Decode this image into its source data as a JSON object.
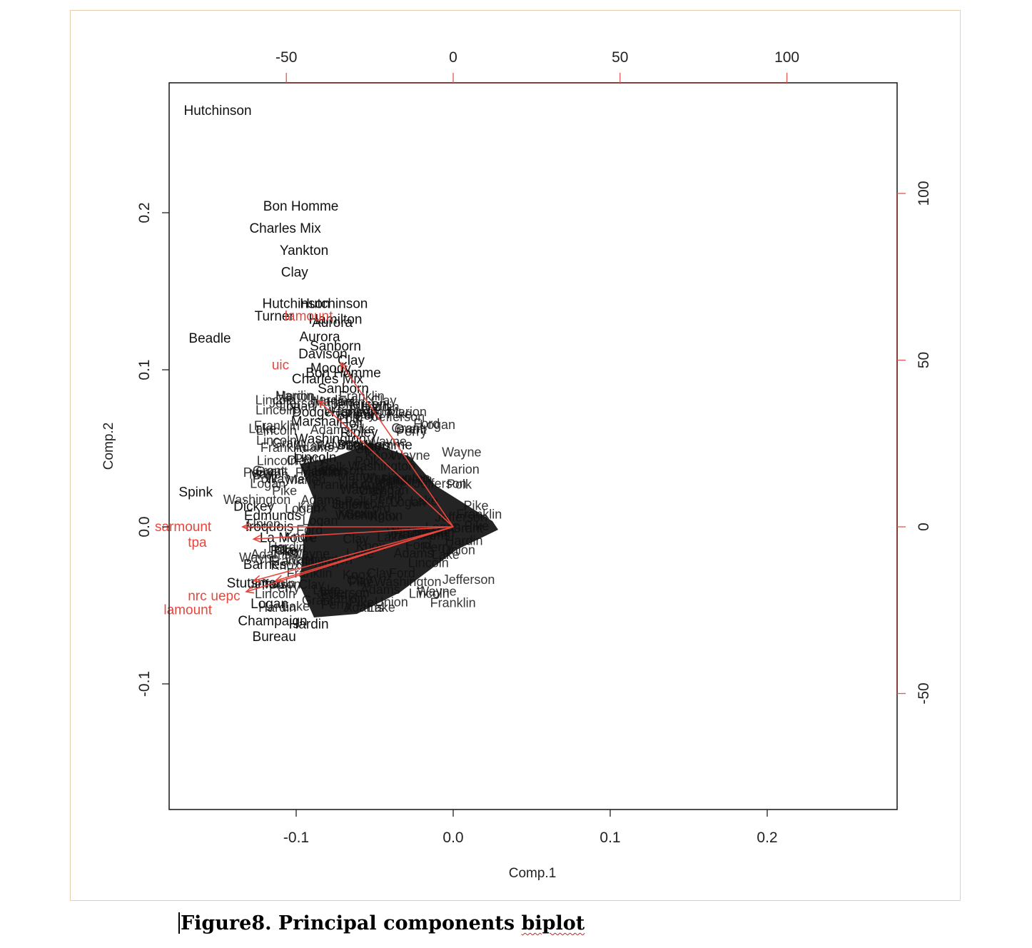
{
  "caption": {
    "prefix": "Figure8. Principal components ",
    "misspelled": "biplot"
  },
  "chart_data": {
    "type": "scatter",
    "subtype": "pca-biplot",
    "xlabel": "Comp.1",
    "ylabel": "Comp.2",
    "xlim": [
      -0.18,
      0.28
    ],
    "ylim": [
      -0.18,
      0.28
    ],
    "x_ticks": [
      -0.1,
      0.0,
      0.1,
      0.2
    ],
    "x_tick_labels": [
      "-0.1",
      "0.0",
      "0.1",
      "0.2"
    ],
    "y_ticks": [
      -0.1,
      0.0,
      0.1,
      0.2
    ],
    "y_tick_labels": [
      "-0.1",
      "0.0",
      "0.1",
      "0.2"
    ],
    "top_axis": {
      "ticks": [
        -50,
        0,
        50,
        100
      ],
      "labels": [
        "-50",
        "0",
        "50",
        "100"
      ],
      "lim": [
        -85,
        133
      ]
    },
    "right_axis": {
      "ticks": [
        -50,
        0,
        50,
        100
      ],
      "labels": [
        "-50",
        "0",
        "50",
        "100"
      ],
      "lim": [
        -85,
        133
      ]
    },
    "colors": {
      "points": "#111111",
      "loadings": "#e8463c",
      "axis": "#222222",
      "secondary_axis": "#e05a50",
      "secondary_axis_line": "#8b2d26"
    },
    "labeled_points": [
      {
        "label": "Hutchinson",
        "x": -0.15,
        "y": 0.265
      },
      {
        "label": "Bon Homme",
        "x": -0.097,
        "y": 0.204
      },
      {
        "label": "Charles Mix",
        "x": -0.107,
        "y": 0.19
      },
      {
        "label": "Yankton",
        "x": -0.095,
        "y": 0.176
      },
      {
        "label": "Clay",
        "x": -0.101,
        "y": 0.162
      },
      {
        "label": "Hutchinson",
        "x": -0.1,
        "y": 0.142
      },
      {
        "label": "Hutchinson",
        "x": -0.076,
        "y": 0.142
      },
      {
        "label": "Turner",
        "x": -0.114,
        "y": 0.134
      },
      {
        "label": "Hamilton",
        "x": -0.075,
        "y": 0.132
      },
      {
        "label": "Aurora",
        "x": -0.077,
        "y": 0.13
      },
      {
        "label": "Beadle",
        "x": -0.155,
        "y": 0.12
      },
      {
        "label": "Aurora",
        "x": -0.085,
        "y": 0.121
      },
      {
        "label": "Sanborn",
        "x": -0.075,
        "y": 0.115
      },
      {
        "label": "Davison",
        "x": -0.083,
        "y": 0.11
      },
      {
        "label": "Clay",
        "x": -0.065,
        "y": 0.106
      },
      {
        "label": "Moody",
        "x": -0.078,
        "y": 0.101
      },
      {
        "label": "Bon Homme",
        "x": -0.07,
        "y": 0.098
      },
      {
        "label": "Charles Mix",
        "x": -0.08,
        "y": 0.094
      },
      {
        "label": "Sanborn",
        "x": -0.07,
        "y": 0.088
      },
      {
        "label": "Jefferson",
        "x": -0.06,
        "y": 0.078
      },
      {
        "label": "Dodge",
        "x": -0.09,
        "y": 0.073
      },
      {
        "label": "Hanson",
        "x": -0.063,
        "y": 0.073
      },
      {
        "label": "Marshall",
        "x": -0.087,
        "y": 0.067
      },
      {
        "label": "Holt",
        "x": -0.065,
        "y": 0.066
      },
      {
        "label": "Ripley",
        "x": -0.06,
        "y": 0.06
      },
      {
        "label": "Washington",
        "x": -0.078,
        "y": 0.056
      },
      {
        "label": "Bon Homme",
        "x": -0.05,
        "y": 0.052
      },
      {
        "label": "Lincoln",
        "x": -0.088,
        "y": 0.044
      },
      {
        "label": "Spink",
        "x": -0.164,
        "y": 0.022
      },
      {
        "label": "Dickey",
        "x": -0.127,
        "y": 0.013
      },
      {
        "label": "Edmunds",
        "x": -0.115,
        "y": 0.007
      },
      {
        "label": "Iroquois",
        "x": -0.117,
        "y": 0.0
      },
      {
        "label": "La Moure",
        "x": -0.105,
        "y": -0.007
      },
      {
        "label": "Pike",
        "x": -0.108,
        "y": -0.015
      },
      {
        "label": "Barnes",
        "x": -0.12,
        "y": -0.024
      },
      {
        "label": "Stutsman",
        "x": -0.126,
        "y": -0.036
      },
      {
        "label": "Logan",
        "x": -0.117,
        "y": -0.049
      },
      {
        "label": "Champaign",
        "x": -0.115,
        "y": -0.06
      },
      {
        "label": "Hardin",
        "x": -0.092,
        "y": -0.062
      },
      {
        "label": "Bureau",
        "x": -0.114,
        "y": -0.07
      }
    ],
    "loadings": [
      {
        "label": "lamount",
        "x": -0.092,
        "y": 0.134
      },
      {
        "label": "uic",
        "x": -0.11,
        "y": 0.103
      },
      {
        "label": "sarmount",
        "x": -0.172,
        "y": 0.0
      },
      {
        "label": "tpa",
        "x": -0.163,
        "y": -0.01
      },
      {
        "label": "nrc",
        "x": -0.163,
        "y": -0.044
      },
      {
        "label": "uepc",
        "x": -0.145,
        "y": -0.044
      },
      {
        "label": "lamount",
        "x": -0.169,
        "y": -0.053
      }
    ]
  }
}
